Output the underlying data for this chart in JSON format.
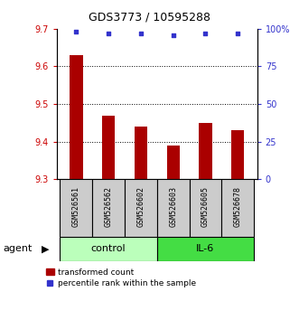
{
  "title": "GDS3773 / 10595288",
  "samples": [
    "GSM526561",
    "GSM526562",
    "GSM526602",
    "GSM526603",
    "GSM526605",
    "GSM526678"
  ],
  "bar_values": [
    9.63,
    9.47,
    9.44,
    9.39,
    9.45,
    9.43
  ],
  "percentile_values": [
    98,
    97,
    97,
    96,
    97,
    97
  ],
  "bar_color": "#aa0000",
  "percentile_color": "#3333cc",
  "ylim_left": [
    9.3,
    9.7
  ],
  "ylim_right": [
    0,
    100
  ],
  "yticks_left": [
    9.3,
    9.4,
    9.5,
    9.6,
    9.7
  ],
  "yticks_right": [
    0,
    25,
    50,
    75,
    100
  ],
  "yticklabels_right": [
    "0",
    "25",
    "50",
    "75",
    "100%"
  ],
  "groups": [
    {
      "label": "control",
      "indices": [
        0,
        1,
        2
      ],
      "color": "#bbffbb"
    },
    {
      "label": "IL-6",
      "indices": [
        3,
        4,
        5
      ],
      "color": "#44dd44"
    }
  ],
  "agent_label": "agent",
  "legend_bar_label": "transformed count",
  "legend_dot_label": "percentile rank within the sample",
  "axis_color_left": "#cc0000",
  "axis_color_right": "#3333cc",
  "dotted_gridlines": [
    9.4,
    9.5,
    9.6
  ],
  "bar_width": 0.4,
  "sample_box_color": "#cccccc",
  "title_fontsize": 9,
  "tick_fontsize": 7,
  "legend_fontsize": 6.5
}
